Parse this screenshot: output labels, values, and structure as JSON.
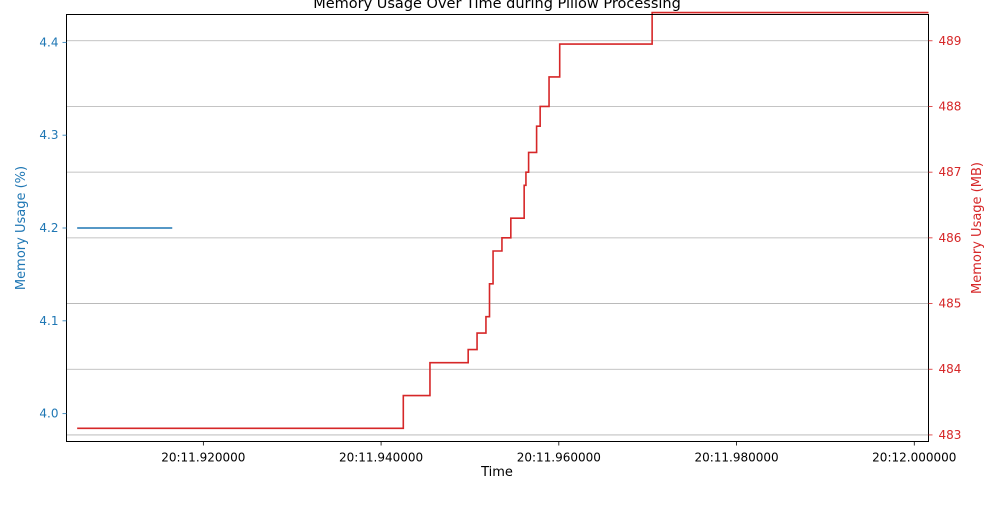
{
  "chart_data": {
    "type": "line",
    "title": "Memory Usage Over Time during Pillow Processing",
    "xlabel": "Time",
    "x_ticks": [
      "20:11.920000",
      "20:11.940000",
      "20:11.960000",
      "20:11.980000",
      "20:12.000000"
    ],
    "x_tick_values": [
      11.92,
      11.94,
      11.96,
      11.98,
      12.0
    ],
    "xlim": [
      11.9046,
      12.0016
    ],
    "left_axis": {
      "label": "Memory Usage (%)",
      "color": "#1f77b4",
      "ylim": [
        3.97,
        4.43
      ],
      "ticks": [
        4.0,
        4.1,
        4.2,
        4.3,
        4.4
      ],
      "tick_labels": [
        "4.0",
        "4.1",
        "4.2",
        "4.3",
        "4.4"
      ]
    },
    "right_axis": {
      "label": "Memory Usage (MB)",
      "color": "#d62728",
      "ylim": [
        482.9,
        489.4
      ],
      "ticks": [
        483,
        484,
        485,
        486,
        487,
        488,
        489
      ],
      "tick_labels": [
        "483",
        "484",
        "485",
        "486",
        "487",
        "488",
        "489"
      ]
    },
    "grid": "horizontal lines at right-axis ticks",
    "series": [
      {
        "axis": "left",
        "color": "#1f77b4",
        "step": true,
        "x": [
          11.9058,
          11.9165
        ],
        "y": [
          4.2,
          4.2
        ]
      },
      {
        "axis": "right",
        "color": "#d62728",
        "step": true,
        "x": [
          11.9058,
          11.9425,
          11.9455,
          11.9498,
          11.9508,
          11.9518,
          11.9522,
          11.9526,
          11.9536,
          11.9546,
          11.9561,
          11.9563,
          11.9566,
          11.9575,
          11.9579,
          11.9589,
          11.9601,
          11.9607,
          11.9705,
          11.9885,
          11.997,
          12.0003,
          12.0016
        ],
        "y": [
          483.1,
          483.6,
          484.1,
          484.3,
          484.55,
          484.8,
          485.3,
          485.8,
          486.0,
          486.3,
          486.8,
          487.0,
          487.3,
          487.7,
          488.0,
          488.45,
          488.95,
          488.95,
          489.43,
          489.43,
          489.43,
          489.43,
          489.43
        ]
      }
    ]
  }
}
